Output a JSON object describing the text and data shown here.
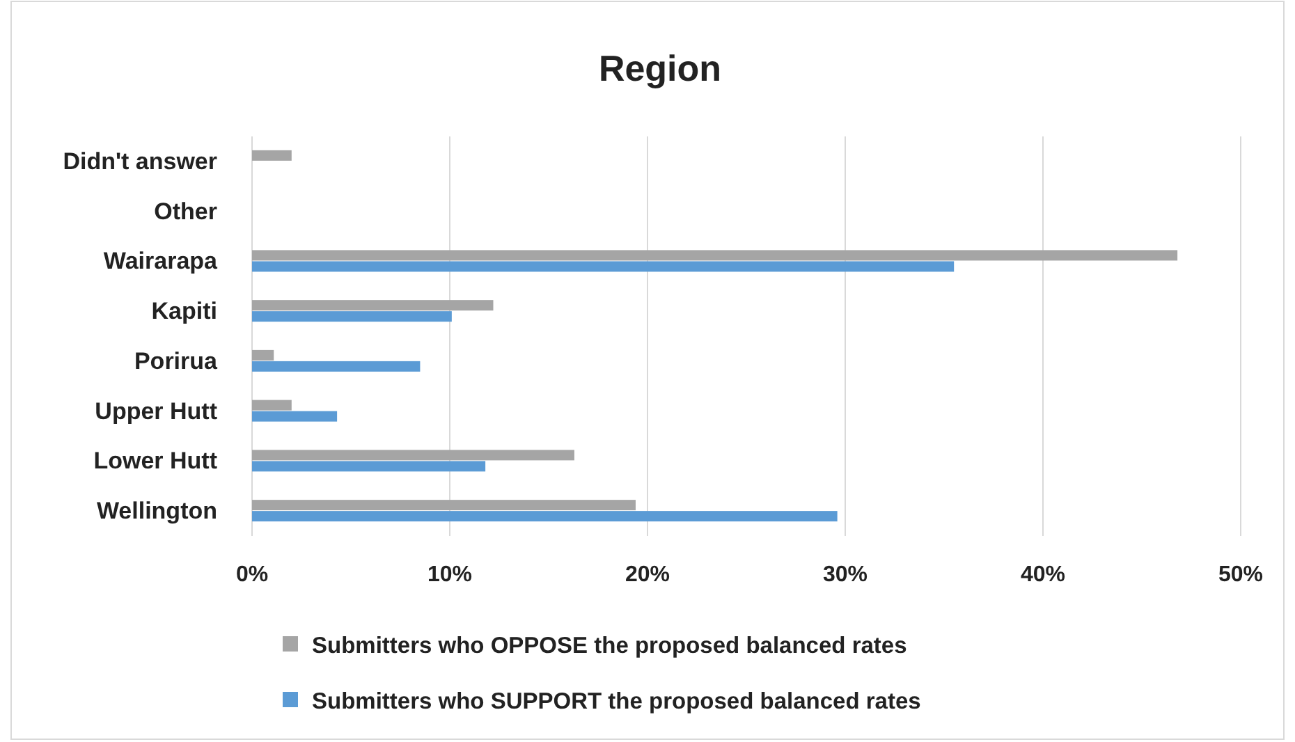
{
  "chart_data": {
    "type": "bar",
    "orientation": "horizontal",
    "title": "Region",
    "categories": [
      "Didn't answer",
      "Other",
      "Wairarapa",
      "Kapiti",
      "Porirua",
      "Upper Hutt",
      "Lower Hutt",
      "Wellington"
    ],
    "series": [
      {
        "name": "Submitters who OPPOSE the proposed balanced rates",
        "color": "#a5a5a5",
        "values": [
          2.0,
          0,
          46.8,
          12.2,
          1.1,
          2.0,
          16.3,
          19.4
        ]
      },
      {
        "name": "Submitters who SUPPORT the proposed balanced rates",
        "color": "#5b9bd5",
        "values": [
          0,
          0,
          35.5,
          10.1,
          8.5,
          4.3,
          11.8,
          29.6
        ]
      }
    ],
    "xlim": [
      0,
      50
    ],
    "xticks": [
      {
        "value": 0,
        "label": "0%"
      },
      {
        "value": 10,
        "label": "10%"
      },
      {
        "value": 20,
        "label": "20%"
      },
      {
        "value": 30,
        "label": "30%"
      },
      {
        "value": 40,
        "label": "40%"
      },
      {
        "value": 50,
        "label": "50%"
      }
    ],
    "grid": "x",
    "legend": "bottom"
  }
}
